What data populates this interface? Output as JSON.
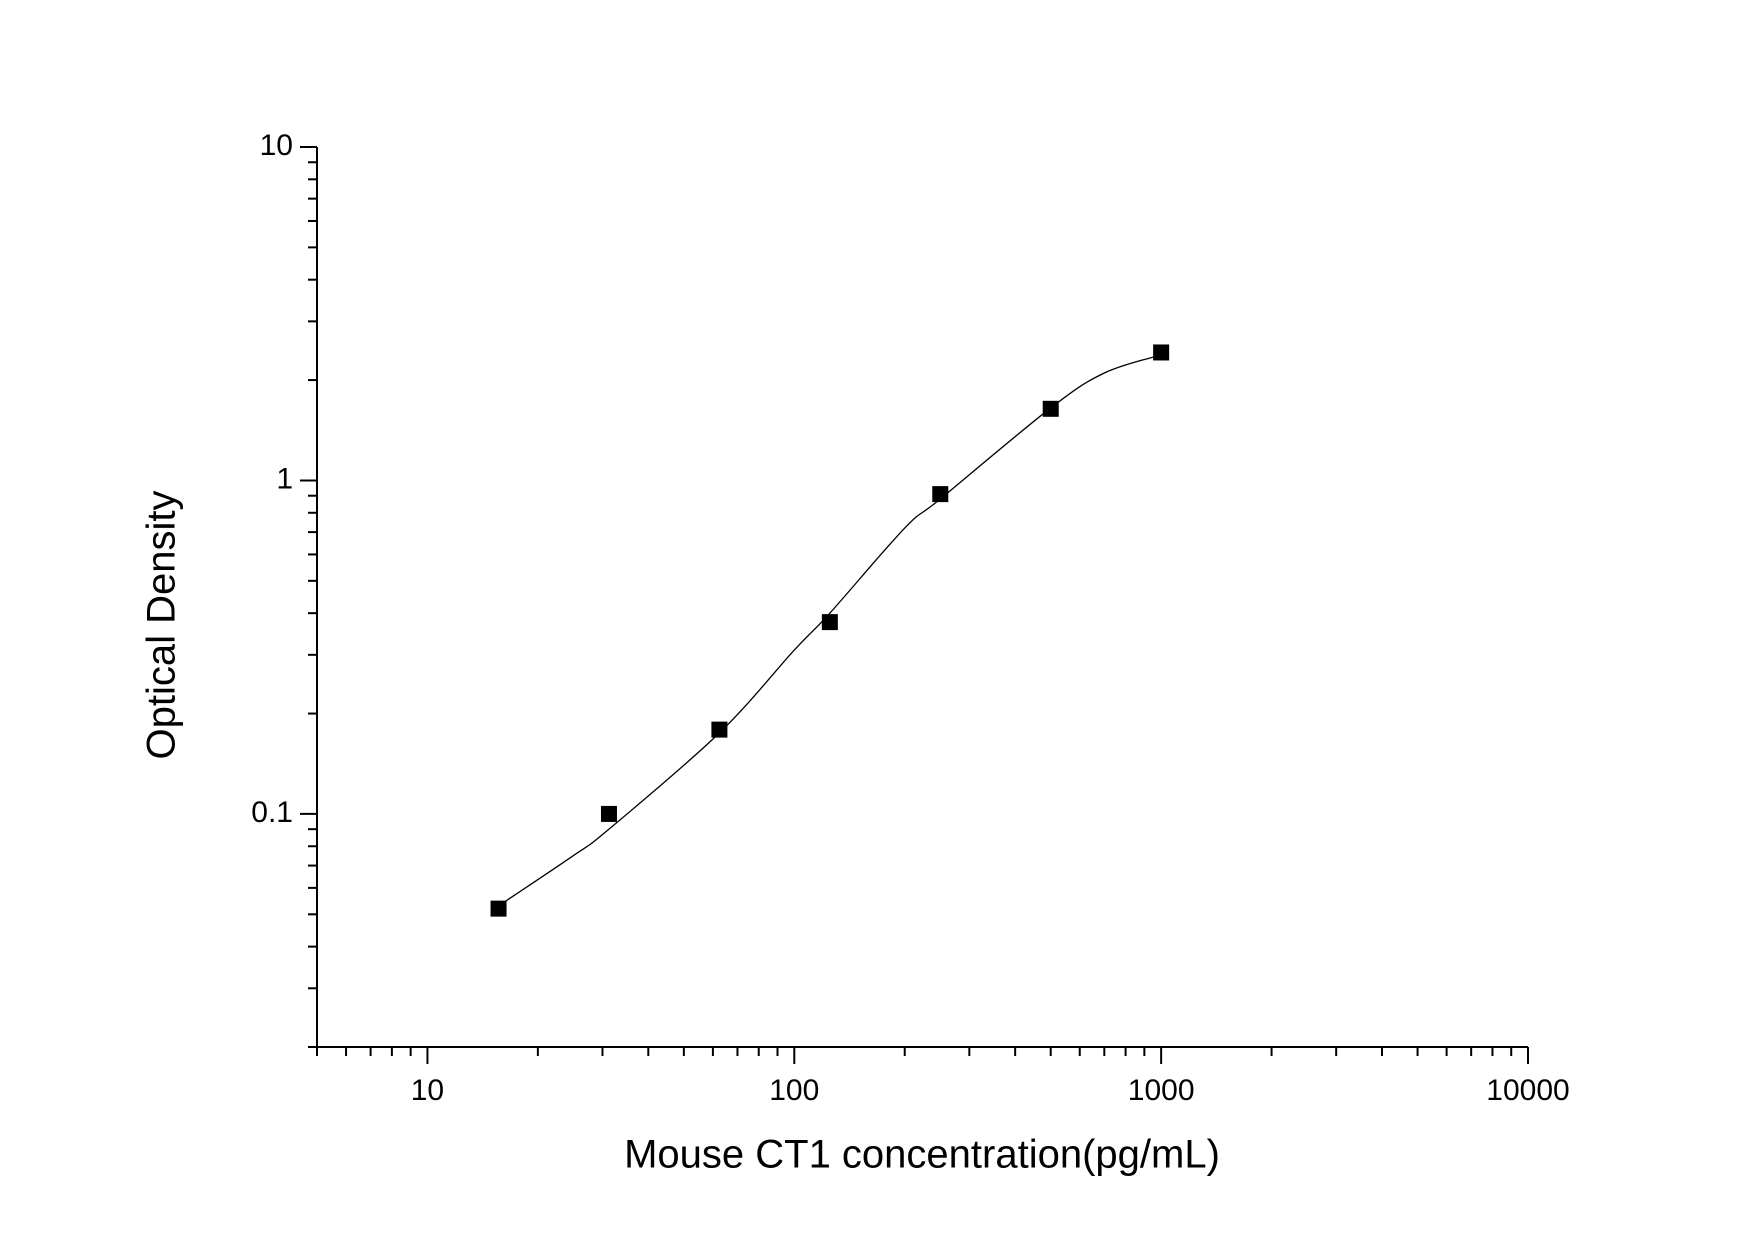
{
  "chart_data": {
    "type": "scatter",
    "x_label": "Mouse CT1 concentration(pg/mL)",
    "y_label": "Optical Density",
    "xscale": "log",
    "yscale": "log",
    "xlim": [
      5,
      10000
    ],
    "ylim": [
      0.02,
      10
    ],
    "xticks": [
      10,
      100,
      1000,
      10000
    ],
    "xminorticks": [
      5,
      6,
      7,
      8,
      9,
      20,
      30,
      40,
      50,
      60,
      70,
      80,
      90,
      200,
      300,
      400,
      500,
      600,
      700,
      800,
      900,
      2000,
      3000,
      4000,
      5000,
      6000,
      7000,
      8000,
      9000
    ],
    "yticks": [
      0.1,
      1,
      10
    ],
    "yminorticks": [
      0.02,
      0.03,
      0.04,
      0.05,
      0.06,
      0.07,
      0.08,
      0.09,
      0.2,
      0.3,
      0.4,
      0.5,
      0.6,
      0.7,
      0.8,
      0.9,
      2,
      3,
      4,
      5,
      6,
      7,
      8,
      9
    ],
    "color": "#000000",
    "series": [
      {
        "kind": "points",
        "x": [
          15.625,
          31.25,
          62.5,
          125,
          250,
          500,
          1000
        ],
        "values": [
          0.052,
          0.1,
          0.179,
          0.376,
          0.91,
          1.64,
          2.42
        ]
      },
      {
        "kind": "fit",
        "x": [
          15.625,
          25,
          31.25,
          62.5,
          100,
          125,
          200,
          250,
          500,
          700,
          1000
        ],
        "values": [
          0.053,
          0.075,
          0.09,
          0.175,
          0.31,
          0.4,
          0.72,
          0.88,
          1.65,
          2.1,
          2.38
        ]
      }
    ]
  }
}
